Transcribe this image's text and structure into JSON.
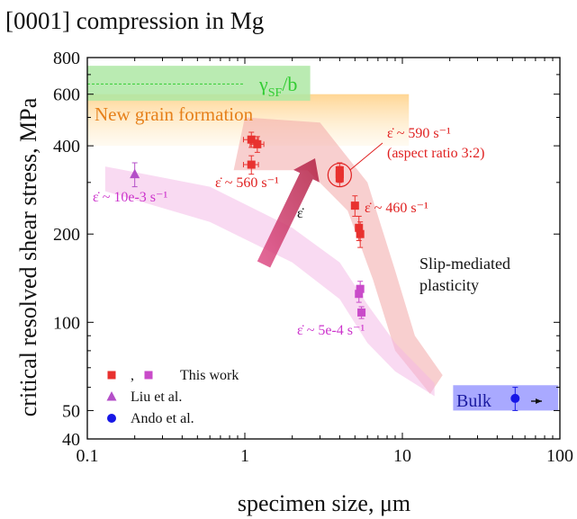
{
  "chart_data": {
    "type": "scatter",
    "title": "[0001] compression in Mg",
    "xlabel": "specimen size, μm",
    "ylabel": "critical resolved shear stress, MPa",
    "xscale": "log",
    "yscale": "log",
    "xlim": [
      0.1,
      100
    ],
    "ylim": [
      40,
      800
    ],
    "x_ticks": [
      0.1,
      1,
      10,
      100
    ],
    "x_tick_labels": [
      "0.1",
      "1",
      "10",
      "100"
    ],
    "y_ticks": [
      40,
      50,
      100,
      200,
      400,
      600,
      800
    ],
    "y_tick_labels": [
      "40",
      "50",
      "100",
      "200",
      "400",
      "600",
      "800"
    ],
    "grid": false,
    "legend_position": "bottom-left",
    "colors": {
      "this_work_red": "#e8312f",
      "this_work_magenta": "#c94bc9",
      "liu": "#b44fc8",
      "ando": "#1717e6",
      "gamma_green": "#33cc33",
      "new_grain_orange": "#e6801a",
      "strain_rate_red": "#e02020",
      "strain_rate_magenta": "#cc33cc",
      "arrow": "#c0305a"
    },
    "legend": [
      {
        "label": "This work",
        "markers": [
          "square-red",
          ",",
          "square-magenta"
        ]
      },
      {
        "label": "Liu et al.",
        "marker": "triangle-magenta"
      },
      {
        "label": "Ando et al.",
        "marker": "circle-blue"
      }
    ],
    "series": [
      {
        "name": "This work",
        "color": "#e8312f",
        "marker": "square",
        "points": [
          {
            "x": 1.1,
            "y": 420,
            "xerr": 0.12,
            "yerr": 25
          },
          {
            "x": 1.2,
            "y": 405,
            "xerr": 0.12,
            "yerr": 25
          },
          {
            "x": 1.1,
            "y": 345,
            "xerr": 0.12,
            "yerr": 25
          },
          {
            "x": 4.0,
            "y": 330,
            "yerr": 20
          },
          {
            "x": 4.0,
            "y": 320,
            "yerr": 20
          },
          {
            "x": 4.0,
            "y": 310,
            "yerr": 20
          },
          {
            "x": 5.0,
            "y": 250,
            "yerr": 20
          },
          {
            "x": 5.3,
            "y": 210,
            "yerr": 20
          },
          {
            "x": 5.4,
            "y": 200,
            "yerr": 20
          }
        ]
      },
      {
        "name": "This work",
        "color": "#c94bc9",
        "marker": "square",
        "points": [
          {
            "x": 5.4,
            "y": 130,
            "yerr": 8
          },
          {
            "x": 5.3,
            "y": 125,
            "yerr": 8
          },
          {
            "x": 5.5,
            "y": 108,
            "yerr": 5
          }
        ]
      },
      {
        "name": "Liu et al.",
        "color": "#b44fc8",
        "marker": "triangle",
        "points": [
          {
            "x": 0.2,
            "y": 320,
            "yerr": 30
          }
        ]
      },
      {
        "name": "Ando et al.",
        "color": "#1717e6",
        "marker": "circle",
        "points": [
          {
            "x": 52,
            "y": 55,
            "yerr": 5
          }
        ]
      }
    ],
    "bands": [
      {
        "name": "red",
        "upper": [
          [
            1.0,
            500
          ],
          [
            3.0,
            480
          ],
          [
            6.0,
            300
          ],
          [
            9.0,
            150
          ],
          [
            12.0,
            90
          ],
          [
            18.0,
            66
          ]
        ],
        "lower": [
          [
            0.85,
            330
          ],
          [
            2.5,
            330
          ],
          [
            4.5,
            240
          ],
          [
            6.5,
            140
          ],
          [
            9.0,
            80
          ],
          [
            15.0,
            57
          ]
        ]
      },
      {
        "name": "pink",
        "upper": [
          [
            0.13,
            340
          ],
          [
            0.6,
            290
          ],
          [
            2.0,
            210
          ],
          [
            4.0,
            160
          ],
          [
            6.0,
            115
          ],
          [
            9.0,
            85
          ],
          [
            16.0,
            62
          ]
        ],
        "lower": [
          [
            0.13,
            280
          ],
          [
            0.6,
            220
          ],
          [
            2.0,
            160
          ],
          [
            4.0,
            120
          ],
          [
            6.0,
            85
          ],
          [
            9.0,
            68
          ],
          [
            16.0,
            56
          ]
        ]
      }
    ],
    "regions": [
      {
        "name": "gamma",
        "x": [
          0.1,
          2.6
        ],
        "y": [
          570,
          750
        ],
        "label": "γSF/b",
        "dashed_line_y": 650,
        "color": "#33cc33"
      },
      {
        "name": "new-grain",
        "x": [
          0.1,
          11
        ],
        "y": [
          400,
          600
        ],
        "label": "New grain formation",
        "color": "#ffa500"
      },
      {
        "name": "bulk",
        "x": [
          21,
          100
        ],
        "y": [
          50,
          61
        ],
        "label": "Bulk",
        "color": "#6464ff"
      }
    ],
    "annotations": [
      {
        "id": "sr-590",
        "lines": [
          "ε̇ ~ 590 s⁻¹",
          "(aspect ratio 3:2)"
        ],
        "color": "#e02020"
      },
      {
        "id": "sr-560",
        "lines": [
          "ε̇ ~ 560 s⁻¹"
        ],
        "color": "#e02020"
      },
      {
        "id": "sr-460",
        "lines": [
          "ε̇ ~ 460 s⁻¹"
        ],
        "color": "#e02020"
      },
      {
        "id": "sr-10e3",
        "lines": [
          "ε̇ ~ 10e-3 s⁻¹"
        ],
        "color": "#cc33cc"
      },
      {
        "id": "sr-5e4",
        "lines": [
          "ε̇ ~ 5e-4 s⁻¹"
        ],
        "color": "#cc33cc"
      },
      {
        "id": "slip",
        "lines": [
          "Slip-mediated",
          "plasticity"
        ],
        "color": "#111111"
      },
      {
        "id": "eps-dot",
        "lines": [
          "ε̇"
        ],
        "color": "#111111"
      }
    ]
  }
}
